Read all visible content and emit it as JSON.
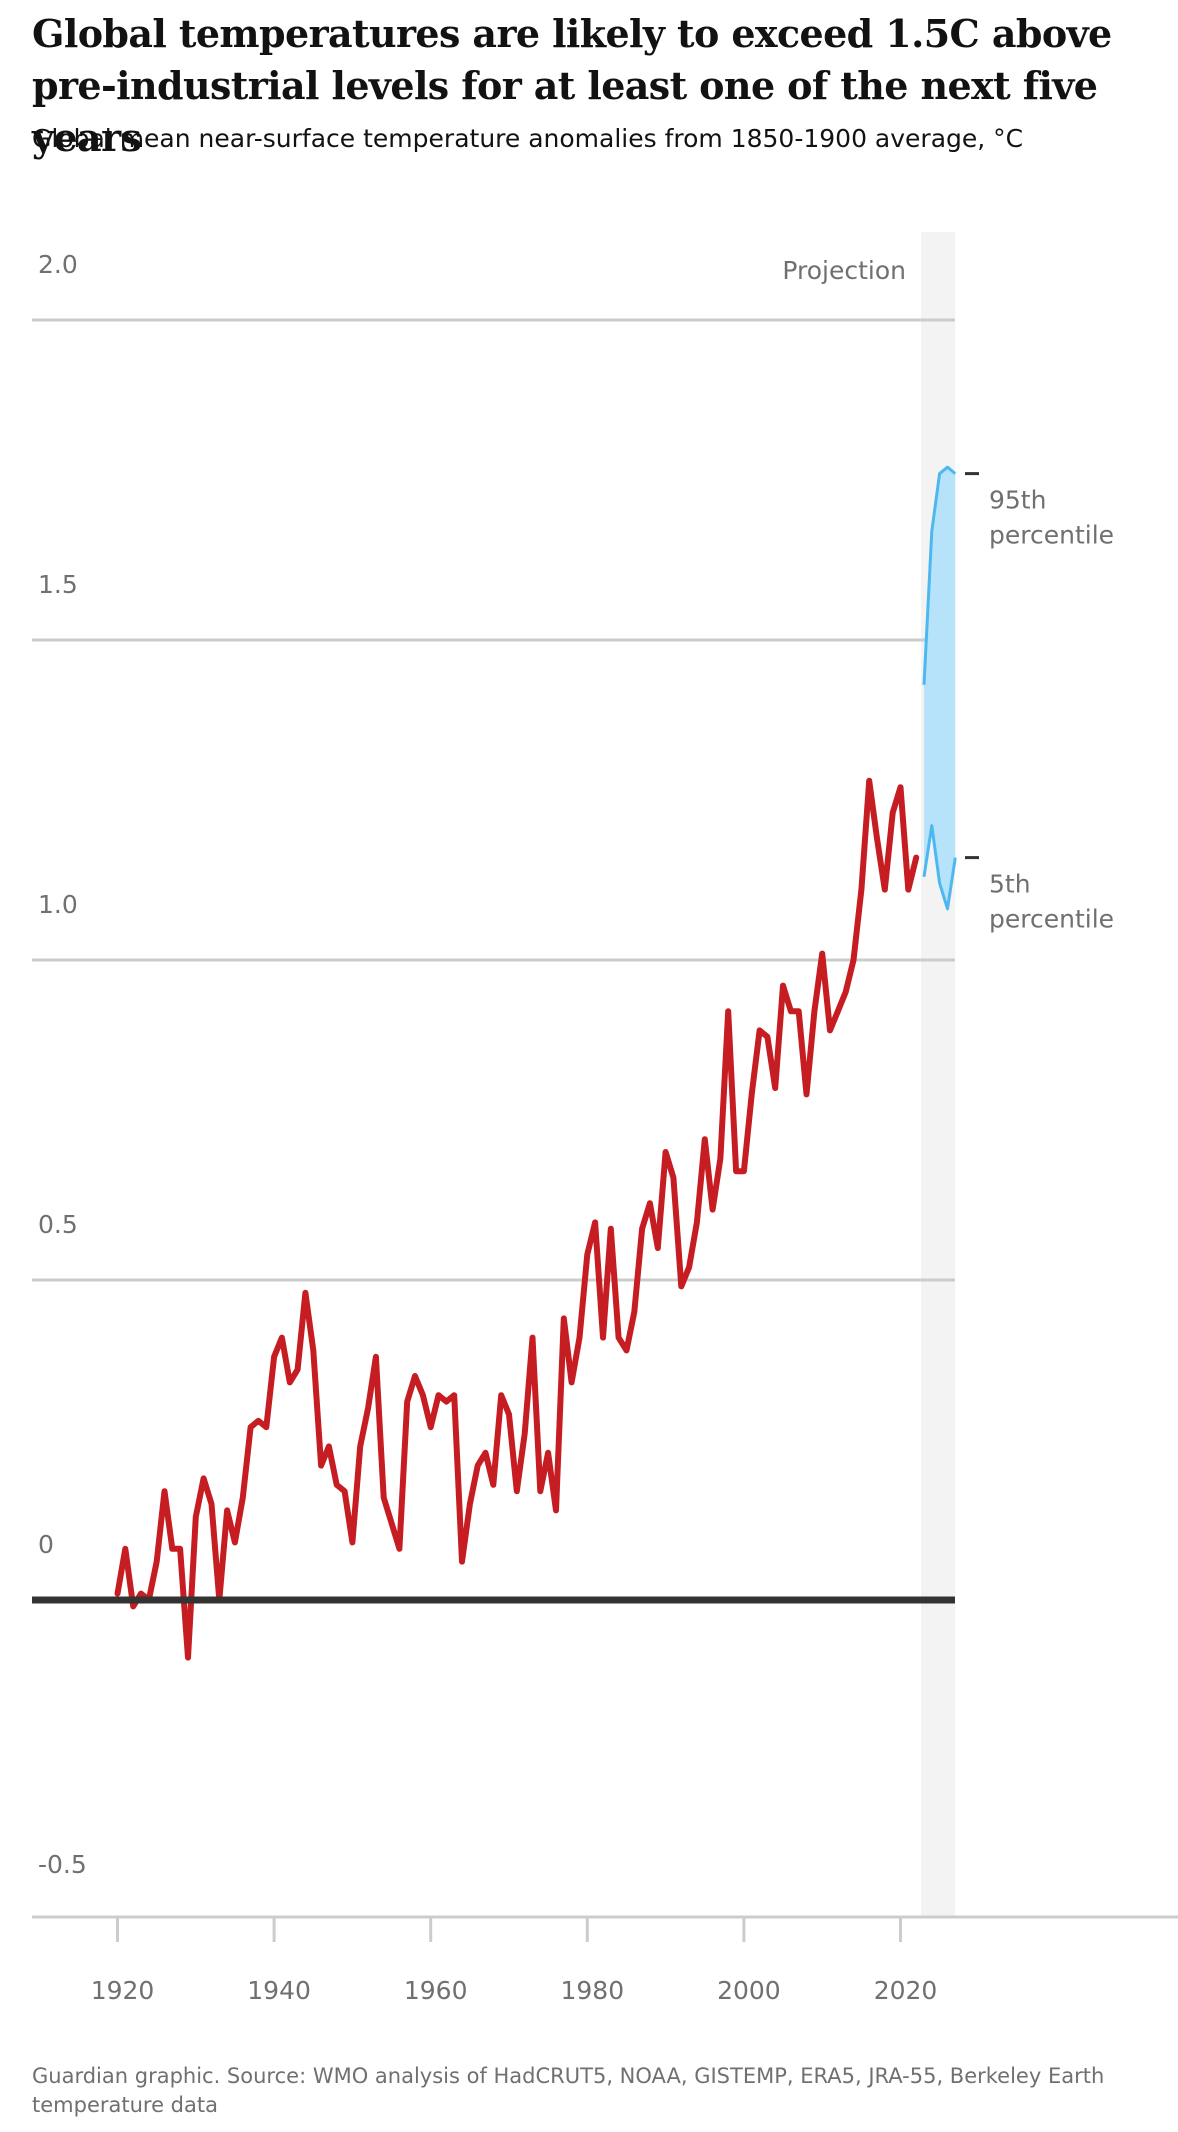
{
  "header": {
    "title": "Global temperatures are likely to exceed 1.5C above pre-industrial levels for at least one of the next five years",
    "subtitle": "Global mean near-surface temperature anomalies from 1850-1900 average, °C"
  },
  "footer": {
    "source": "Guardian graphic. Source: WMO analysis of HadCRUT5, NOAA, GISTEMP, ERA5, JRA-55, Berkeley Earth temperature data"
  },
  "colors": {
    "observed": "#c61d23",
    "projection_line": "#4db8f0",
    "projection_fill": "#b6e3fa",
    "projection_band": "#f3f3f3",
    "gridline": "#cccccc",
    "baseline": "#333333",
    "axis_text": "#707070"
  },
  "chart_data": {
    "type": "line",
    "title": "",
    "xlabel": "",
    "ylabel": "",
    "xlim": [
      1909,
      2042
    ],
    "ylim": [
      -0.5,
      2.0
    ],
    "x_ticks": [
      1920,
      1940,
      1960,
      1980,
      2000,
      2020
    ],
    "y_ticks": [
      -0.5,
      0,
      0.5,
      1.0,
      1.5,
      2.0
    ],
    "y_tick_labels": [
      "-0.5",
      "0",
      "0.5",
      "1.0",
      "1.5",
      "2.0"
    ],
    "grid": "horizontal",
    "projection_band_label": "Projection",
    "projection_range": [
      2023,
      2027
    ],
    "series": [
      {
        "x": [
          1920,
          1921,
          1922,
          1923,
          1924,
          1925,
          1926,
          1927,
          1928,
          1929,
          1930,
          1931,
          1932,
          1933,
          1934,
          1935,
          1936,
          1937,
          1938,
          1939,
          1940,
          1941,
          1942,
          1943,
          1944,
          1945,
          1946,
          1947,
          1948,
          1949,
          1950,
          1951,
          1952,
          1953,
          1954,
          1955,
          1956,
          1957,
          1958,
          1959,
          1960,
          1961,
          1962,
          1963,
          1964,
          1965,
          1966,
          1967,
          1968,
          1969,
          1970,
          1971,
          1972,
          1973,
          1974,
          1975,
          1976,
          1977,
          1978,
          1979,
          1980,
          1981,
          1982,
          1983,
          1984,
          1985,
          1986,
          1987,
          1988,
          1989,
          1990,
          1991,
          1992,
          1993,
          1994,
          1995,
          1996,
          1997,
          1998,
          1999,
          2000,
          2001,
          2002,
          2003,
          2004,
          2005,
          2006,
          2007,
          2008,
          2009,
          2010,
          2011,
          2012,
          2013,
          2014,
          2015,
          2016,
          2017,
          2018,
          2019,
          2020,
          2021,
          2022
        ],
        "values": [
          0.01,
          0.08,
          -0.01,
          0.01,
          0.0,
          0.06,
          0.17,
          0.08,
          0.08,
          -0.09,
          0.13,
          0.19,
          0.15,
          0.0,
          0.14,
          0.09,
          0.16,
          0.27,
          0.28,
          0.27,
          0.38,
          0.41,
          0.34,
          0.36,
          0.48,
          0.39,
          0.21,
          0.24,
          0.18,
          0.17,
          0.09,
          0.24,
          0.3,
          0.38,
          0.16,
          0.12,
          0.08,
          0.31,
          0.35,
          0.32,
          0.27,
          0.32,
          0.31,
          0.32,
          0.06,
          0.15,
          0.21,
          0.23,
          0.18,
          0.32,
          0.29,
          0.17,
          0.26,
          0.41,
          0.17,
          0.23,
          0.14,
          0.44,
          0.34,
          0.41,
          0.54,
          0.59,
          0.41,
          0.58,
          0.41,
          0.39,
          0.45,
          0.58,
          0.62,
          0.55,
          0.7,
          0.66,
          0.49,
          0.52,
          0.59,
          0.72,
          0.61,
          0.69,
          0.92,
          0.67,
          0.67,
          0.79,
          0.89,
          0.88,
          0.8,
          0.96,
          0.92,
          0.92,
          0.79,
          0.92,
          1.01,
          0.89,
          0.92,
          0.95,
          1.0,
          1.11,
          1.28,
          1.19,
          1.11,
          1.23,
          1.27,
          1.11,
          1.16
        ]
      }
    ],
    "projection": {
      "x": [
        2023,
        2024,
        2025,
        2026,
        2027
      ],
      "p95": [
        1.43,
        1.67,
        1.76,
        1.77,
        1.76
      ],
      "p5": [
        1.13,
        1.21,
        1.12,
        1.08,
        1.16
      ],
      "p95_label": [
        "95th",
        "percentile"
      ],
      "p5_label": [
        "5th",
        "percentile"
      ]
    }
  }
}
